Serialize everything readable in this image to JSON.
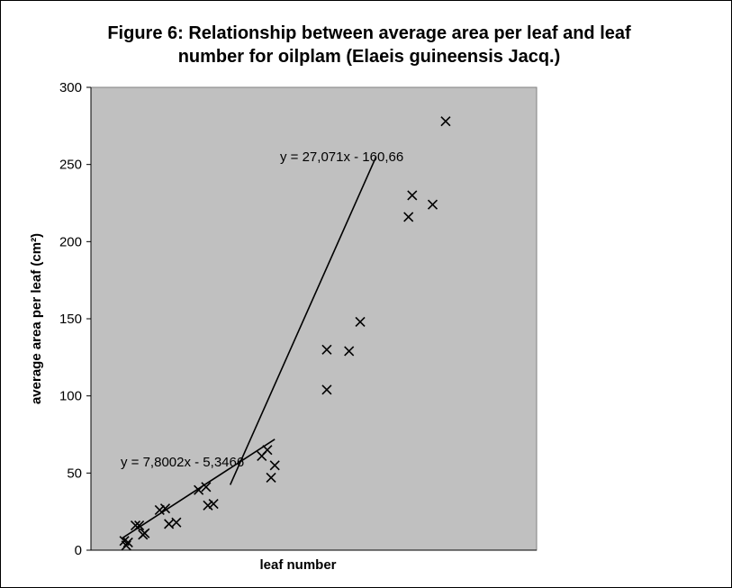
{
  "chart_data": {
    "type": "scatter",
    "title": "Figure 6: Relationship between average area per leaf and leaf number for oilplam (Elaeis guineensis Jacq.)",
    "xlabel": "leaf number",
    "ylabel": "average area per leaf (cm²)",
    "ylim": [
      0,
      300
    ],
    "yticks": [
      "0",
      "50",
      "100",
      "150",
      "200",
      "250",
      "300"
    ],
    "xlim": [
      0,
      24
    ],
    "x_ticks_shown": false,
    "grid": false,
    "plot_background": "#c0c0c0",
    "marker": "x",
    "series": [
      {
        "points": [
          [
            1.8,
            6
          ],
          [
            1.9,
            3
          ],
          [
            2.0,
            5
          ],
          [
            2.4,
            16
          ],
          [
            2.6,
            16
          ],
          [
            2.8,
            10
          ],
          [
            2.9,
            11
          ],
          [
            3.7,
            26
          ],
          [
            4.0,
            27
          ],
          [
            4.2,
            17
          ],
          [
            4.6,
            18
          ],
          [
            5.8,
            39
          ],
          [
            6.2,
            41
          ],
          [
            6.3,
            29
          ],
          [
            6.6,
            30
          ],
          [
            9.2,
            61
          ],
          [
            9.5,
            65
          ],
          [
            9.7,
            47
          ],
          [
            9.9,
            55
          ],
          [
            12.7,
            130
          ],
          [
            12.7,
            104
          ],
          [
            13.9,
            129
          ],
          [
            14.5,
            148
          ],
          [
            17.1,
            216
          ],
          [
            17.3,
            230
          ],
          [
            18.4,
            224
          ],
          [
            19.1,
            278
          ]
        ]
      }
    ],
    "trendlines": [
      {
        "equation": "y = 7,8002x - 5,3466",
        "slope": 7.8002,
        "intercept": -5.3466,
        "x_start": 1.7,
        "x_end": 9.9
      },
      {
        "equation": "y = 27,071x - 160,66",
        "slope": 27.071,
        "intercept": -160.66,
        "x_start": 7.5,
        "x_end": 15.35
      }
    ]
  }
}
